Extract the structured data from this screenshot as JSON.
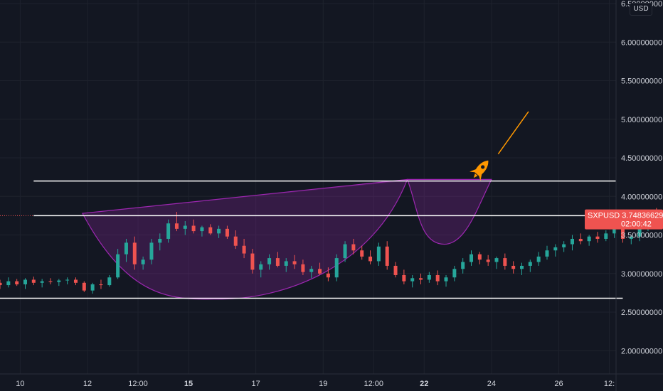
{
  "chart_data": {
    "type": "candlestick",
    "symbol": "SXPUSD",
    "currency": "USD",
    "last_price": "3.74836629",
    "countdown": "02:00:42",
    "colors": {
      "up": "#26a69a",
      "down": "#ef5350",
      "pattern": "#9c27b0",
      "rocket": "#ff9800",
      "background": "#131722",
      "lines": "#ffffff"
    },
    "y_axis": {
      "range": [
        1.8,
        6.5
      ],
      "ticks": [
        {
          "value": 6.5,
          "label": "6.50000000"
        },
        {
          "value": 6.0,
          "label": "6.00000000"
        },
        {
          "value": 5.5,
          "label": "5.50000000"
        },
        {
          "value": 5.0,
          "label": "5.00000000"
        },
        {
          "value": 4.5,
          "label": "4.50000000"
        },
        {
          "value": 4.0,
          "label": "4.00000000"
        },
        {
          "value": 3.5,
          "label": "3.50000000"
        },
        {
          "value": 3.0,
          "label": "3.00000000"
        },
        {
          "value": 2.5,
          "label": "2.50000000"
        },
        {
          "value": 2.0,
          "label": "2.00000000"
        }
      ]
    },
    "x_axis": {
      "range_days": [
        9.4,
        27.7
      ],
      "ticks": [
        {
          "day": 10,
          "label": "10",
          "bold": false
        },
        {
          "day": 12,
          "label": "12",
          "bold": false
        },
        {
          "day": 13.5,
          "label": "12:00",
          "bold": false
        },
        {
          "day": 15,
          "label": "15",
          "bold": true
        },
        {
          "day": 17,
          "label": "17",
          "bold": false
        },
        {
          "day": 19,
          "label": "19",
          "bold": false
        },
        {
          "day": 20.5,
          "label": "12:00",
          "bold": false
        },
        {
          "day": 22,
          "label": "22",
          "bold": true
        },
        {
          "day": 24,
          "label": "24",
          "bold": false
        },
        {
          "day": 26,
          "label": "26",
          "bold": false
        },
        {
          "day": 27.5,
          "label": "12:",
          "bold": false
        }
      ]
    },
    "candles": [
      [
        2.88,
        2.92,
        2.8,
        2.85
      ],
      [
        2.85,
        2.95,
        2.82,
        2.9
      ],
      [
        2.9,
        2.93,
        2.84,
        2.86
      ],
      [
        2.86,
        2.94,
        2.8,
        2.92
      ],
      [
        2.92,
        2.96,
        2.85,
        2.88
      ],
      [
        2.88,
        2.93,
        2.82,
        2.9
      ],
      [
        2.9,
        2.94,
        2.86,
        2.89
      ],
      [
        2.89,
        2.93,
        2.84,
        2.91
      ],
      [
        2.91,
        2.95,
        2.86,
        2.92
      ],
      [
        2.92,
        2.95,
        2.85,
        2.88
      ],
      [
        2.88,
        2.9,
        2.76,
        2.78
      ],
      [
        2.78,
        2.88,
        2.74,
        2.86
      ],
      [
        2.86,
        2.92,
        2.8,
        2.85
      ],
      [
        2.85,
        2.98,
        2.83,
        2.95
      ],
      [
        2.95,
        3.32,
        2.93,
        3.25
      ],
      [
        3.25,
        3.45,
        3.15,
        3.4
      ],
      [
        3.4,
        3.48,
        3.05,
        3.12
      ],
      [
        3.12,
        3.22,
        3.05,
        3.18
      ],
      [
        3.18,
        3.45,
        3.12,
        3.4
      ],
      [
        3.4,
        3.52,
        3.3,
        3.45
      ],
      [
        3.45,
        3.7,
        3.4,
        3.65
      ],
      [
        3.65,
        3.8,
        3.55,
        3.58
      ],
      [
        3.58,
        3.68,
        3.5,
        3.62
      ],
      [
        3.62,
        3.7,
        3.52,
        3.55
      ],
      [
        3.55,
        3.62,
        3.48,
        3.6
      ],
      [
        3.6,
        3.64,
        3.5,
        3.52
      ],
      [
        3.52,
        3.62,
        3.46,
        3.58
      ],
      [
        3.58,
        3.62,
        3.45,
        3.48
      ],
      [
        3.48,
        3.56,
        3.32,
        3.36
      ],
      [
        3.36,
        3.45,
        3.2,
        3.26
      ],
      [
        3.26,
        3.32,
        3.0,
        3.05
      ],
      [
        3.05,
        3.16,
        2.95,
        3.12
      ],
      [
        3.12,
        3.25,
        3.05,
        3.2
      ],
      [
        3.2,
        3.28,
        3.08,
        3.1
      ],
      [
        3.1,
        3.2,
        3.02,
        3.16
      ],
      [
        3.16,
        3.24,
        3.06,
        3.12
      ],
      [
        3.12,
        3.18,
        2.98,
        3.02
      ],
      [
        3.02,
        3.1,
        2.94,
        3.06
      ],
      [
        3.06,
        3.14,
        2.98,
        3.0
      ],
      [
        3.0,
        3.08,
        2.9,
        2.95
      ],
      [
        2.95,
        3.25,
        2.9,
        3.2
      ],
      [
        3.2,
        3.42,
        3.15,
        3.38
      ],
      [
        3.38,
        3.45,
        3.25,
        3.3
      ],
      [
        3.3,
        3.36,
        3.18,
        3.22
      ],
      [
        3.22,
        3.3,
        3.12,
        3.16
      ],
      [
        3.16,
        3.4,
        3.1,
        3.35
      ],
      [
        3.35,
        3.42,
        3.05,
        3.1
      ],
      [
        3.1,
        3.15,
        2.95,
        2.98
      ],
      [
        2.98,
        3.05,
        2.86,
        2.9
      ],
      [
        2.9,
        2.98,
        2.82,
        2.94
      ],
      [
        2.94,
        3.0,
        2.86,
        2.92
      ],
      [
        2.92,
        3.02,
        2.88,
        2.98
      ],
      [
        2.98,
        3.04,
        2.85,
        2.9
      ],
      [
        2.9,
        2.98,
        2.83,
        2.95
      ],
      [
        2.95,
        3.1,
        2.9,
        3.06
      ],
      [
        3.06,
        3.2,
        3.0,
        3.15
      ],
      [
        3.15,
        3.3,
        3.1,
        3.25
      ],
      [
        3.25,
        3.28,
        3.12,
        3.18
      ],
      [
        3.18,
        3.24,
        3.1,
        3.15
      ],
      [
        3.15,
        3.22,
        3.06,
        3.2
      ],
      [
        3.2,
        3.26,
        3.05,
        3.1
      ],
      [
        3.1,
        3.16,
        3.0,
        3.06
      ],
      [
        3.06,
        3.14,
        2.98,
        3.1
      ],
      [
        3.1,
        3.18,
        3.02,
        3.15
      ],
      [
        3.15,
        3.28,
        3.1,
        3.22
      ],
      [
        3.22,
        3.36,
        3.18,
        3.3
      ],
      [
        3.3,
        3.38,
        3.22,
        3.34
      ],
      [
        3.34,
        3.42,
        3.28,
        3.38
      ],
      [
        3.38,
        3.5,
        3.3,
        3.45
      ],
      [
        3.45,
        3.52,
        3.38,
        3.42
      ],
      [
        3.42,
        3.5,
        3.36,
        3.48
      ],
      [
        3.48,
        3.54,
        3.4,
        3.45
      ],
      [
        3.45,
        3.56,
        3.42,
        3.52
      ],
      [
        3.52,
        3.62,
        3.46,
        3.58
      ],
      [
        3.58,
        3.66,
        3.4,
        3.45
      ],
      [
        3.45,
        3.5,
        3.38,
        3.48
      ],
      [
        3.48,
        3.62,
        3.42,
        3.58
      ],
      [
        3.58,
        3.78,
        3.55,
        3.75
      ],
      [
        3.75,
        3.85,
        3.62,
        3.66
      ],
      [
        3.66,
        3.98,
        3.62,
        3.95
      ],
      [
        3.95,
        4.05,
        3.8,
        3.85
      ],
      [
        3.85,
        3.92,
        3.78,
        3.82
      ],
      [
        3.82,
        3.96,
        3.78,
        3.9
      ],
      [
        3.9,
        4.05,
        3.85,
        4.02
      ],
      [
        4.02,
        4.08,
        3.88,
        3.92
      ],
      [
        3.92,
        3.98,
        3.78,
        3.75
      ]
    ],
    "cup_pattern": {
      "rim_left": {
        "day": 11.85,
        "price": 3.78
      },
      "bottom": {
        "day": 16.0,
        "price": 2.67
      },
      "rim_right": {
        "day": 21.5,
        "price": 4.22
      },
      "handle_bottom": {
        "day": 22.6,
        "price": 3.38
      },
      "handle_end": {
        "day": 24.0,
        "price": 4.22
      }
    },
    "horizontal_lines": [
      {
        "price": 4.2,
        "day_start": 10.4,
        "day_end": 27.7
      },
      {
        "price": 3.75,
        "day_start": 10.4,
        "day_end": 27.7
      },
      {
        "price": 2.68,
        "day_start": 9.4,
        "day_end": 27.9
      }
    ],
    "target_line": {
      "from": {
        "day": 24.2,
        "price": 4.55
      },
      "to": {
        "day": 25.1,
        "price": 5.1
      }
    }
  }
}
